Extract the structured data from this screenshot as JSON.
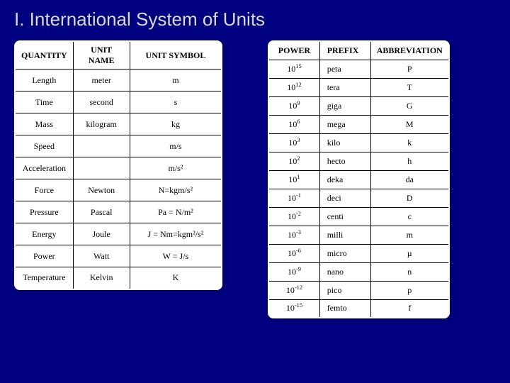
{
  "title": "I.   International System of Units",
  "leftTable": {
    "columns": [
      "QUANTITY",
      "UNIT NAME",
      "UNIT SYMBOL"
    ],
    "rows": [
      {
        "q": "Length",
        "n": "meter",
        "s": "m"
      },
      {
        "q": "Time",
        "n": "second",
        "s": "s"
      },
      {
        "q": "Mass",
        "n": "kilogram",
        "s": "kg"
      },
      {
        "q": "Speed",
        "n": "",
        "s": "m/s"
      },
      {
        "q": "Acceleration",
        "n": "",
        "s": "m/s²"
      },
      {
        "q": "Force",
        "n": "Newton",
        "s": "N=kgm/s²"
      },
      {
        "q": "Pressure",
        "n": "Pascal",
        "s": "Pa = N/m²"
      },
      {
        "q": "Energy",
        "n": "Joule",
        "s": "J = Nm=kgm²/s²"
      },
      {
        "q": "Power",
        "n": "Watt",
        "s": "W = J/s"
      },
      {
        "q": "Temperature",
        "n": "Kelvin",
        "s": "K"
      }
    ]
  },
  "rightTable": {
    "columns": [
      "POWER",
      "PREFIX",
      "ABBREVIATION"
    ],
    "rows": [
      {
        "base": "10",
        "exp": "15",
        "pr": "peta",
        "a": "P"
      },
      {
        "base": "10",
        "exp": "12",
        "pr": "tera",
        "a": "T"
      },
      {
        "base": "10",
        "exp": "9",
        "pr": "giga",
        "a": "G"
      },
      {
        "base": "10",
        "exp": "6",
        "pr": "mega",
        "a": "M"
      },
      {
        "base": "10",
        "exp": "3",
        "pr": "kilo",
        "a": "k"
      },
      {
        "base": "10",
        "exp": "2",
        "pr": "hecto",
        "a": "h"
      },
      {
        "base": "10",
        "exp": "1",
        "pr": "deka",
        "a": "da"
      },
      {
        "base": "10",
        "exp": "-1",
        "pr": "deci",
        "a": "D"
      },
      {
        "base": "10",
        "exp": "-2",
        "pr": "centi",
        "a": "c"
      },
      {
        "base": "10",
        "exp": "-3",
        "pr": "milli",
        "a": "m"
      },
      {
        "base": "10",
        "exp": "-6",
        "pr": "micro",
        "a": "µ"
      },
      {
        "base": "10",
        "exp": "-9",
        "pr": "nano",
        "a": "n"
      },
      {
        "base": "10",
        "exp": "-12",
        "pr": "pico",
        "a": "p"
      },
      {
        "base": "10",
        "exp": "-15",
        "pr": "femto",
        "a": "f"
      }
    ]
  },
  "colors": {
    "background": "#000080",
    "tableBg": "#ffffff",
    "border": "#000000",
    "titleColor": "#d8d8e8"
  }
}
